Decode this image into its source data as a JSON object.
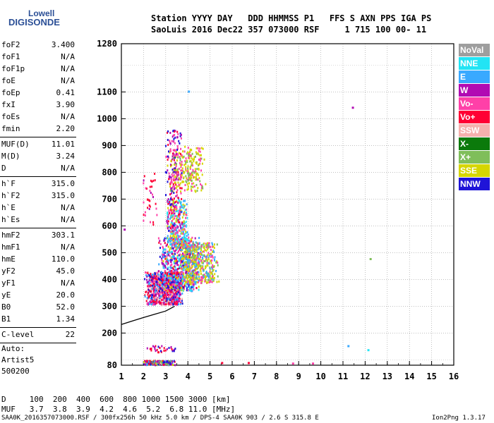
{
  "logo": {
    "line1": "Lowell",
    "line2": "DIGISONDE"
  },
  "header": {
    "line1": "Station YYYY DAY   DDD HHMMSS P1   FFS S AXN PPS IGA PS",
    "line2": "SaoLuis 2016 Dec22 357 073000 RSF     1 715 100 00- 11"
  },
  "params": [
    {
      "label": "foF2",
      "value": "3.400"
    },
    {
      "label": "foF1",
      "value": "N/A"
    },
    {
      "label": "foF1p",
      "value": "N/A"
    },
    {
      "label": "foE",
      "value": "N/A"
    },
    {
      "label": "foEp",
      "value": "0.41"
    },
    {
      "label": "fxI",
      "value": "3.90"
    },
    {
      "label": "foEs",
      "value": "N/A"
    },
    {
      "label": "fmin",
      "value": "2.20"
    },
    {
      "label": "MUF(D)",
      "value": "11.01"
    },
    {
      "label": "M(D)",
      "value": "3.24"
    },
    {
      "label": "D",
      "value": "N/A"
    },
    {
      "label": "h`F",
      "value": "315.0"
    },
    {
      "label": "h`F2",
      "value": "315.0"
    },
    {
      "label": "h`E",
      "value": "N/A"
    },
    {
      "label": "h`Es",
      "value": "N/A"
    },
    {
      "label": "hmF2",
      "value": "303.1"
    },
    {
      "label": "hmF1",
      "value": "N/A"
    },
    {
      "label": "hmE",
      "value": "110.0"
    },
    {
      "label": "yF2",
      "value": "45.0"
    },
    {
      "label": "yF1",
      "value": "N/A"
    },
    {
      "label": "yE",
      "value": "20.0"
    },
    {
      "label": "B0",
      "value": "52.0"
    },
    {
      "label": "B1",
      "value": "1.34"
    },
    {
      "label": "C-level",
      "value": "22"
    }
  ],
  "autoscaling": {
    "line1": "Auto:",
    "line2": "Artist5",
    "line3": "500200"
  },
  "legend": [
    {
      "label": "NoVal",
      "color": "#9e9e9e"
    },
    {
      "label": "NNE",
      "color": "#22e4f4"
    },
    {
      "label": "E",
      "color": "#39a9ff"
    },
    {
      "label": "W",
      "color": "#b10bb3"
    },
    {
      "label": "Vo-",
      "color": "#ff40a8"
    },
    {
      "label": "Vo+",
      "color": "#ff0034"
    },
    {
      "label": "SSW",
      "color": "#f5b0ad"
    },
    {
      "label": "X-",
      "color": "#0b7a0b"
    },
    {
      "label": "X+",
      "color": "#7fbe5a"
    },
    {
      "label": "SSE",
      "color": "#d6d600"
    },
    {
      "label": "NNW",
      "color": "#1f14d8"
    }
  ],
  "chart_data": {
    "type": "scatter",
    "xlim": [
      1,
      16
    ],
    "ylim": [
      80,
      1280
    ],
    "x_ticks": [
      1,
      2,
      3,
      4,
      5,
      6,
      7,
      8,
      9,
      10,
      11,
      12,
      13,
      14,
      15,
      16
    ],
    "y_ticks": [
      80,
      200,
      300,
      400,
      500,
      600,
      700,
      800,
      900,
      1000,
      1100,
      1280
    ],
    "grid": true,
    "profile_curve": [
      [
        1,
        232
      ],
      [
        1.5,
        245
      ],
      [
        2,
        258
      ],
      [
        2.5,
        270
      ],
      [
        3,
        282
      ],
      [
        3.4,
        300
      ]
    ]
  },
  "footer": {
    "line1": "D     100  200  400  600  800 1000 1500 3000 [km]",
    "line2": "MUF   3.7  3.8  3.9  4.2  4.6  5.2  6.8 11.0 [MHz]",
    "line3": "SAA0K_2016357073000.RSF / 300fx256h 50 kHz 5.0 km / DPS-4 SAA0K 903 / 2.6 S 315.8 E",
    "version": "Ion2Png 1.3.17"
  }
}
